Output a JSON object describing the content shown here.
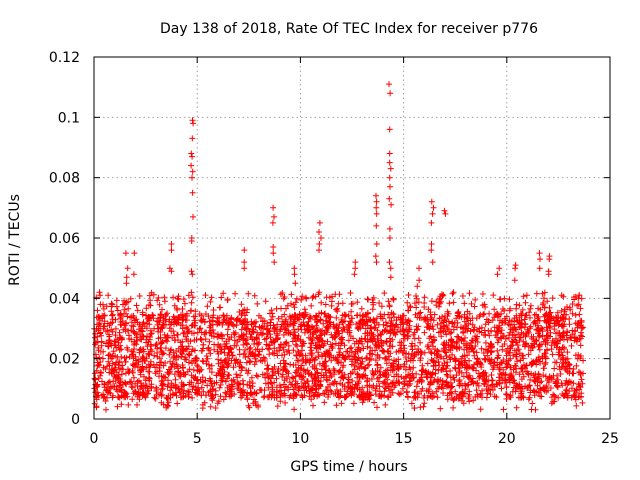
{
  "chart_data": {
    "type": "scatter",
    "title": "Day 138 of 2018, Rate Of TEC Index for receiver p776",
    "xlabel": "GPS time / hours",
    "ylabel": "ROTI / TECUs",
    "xlim": [
      0,
      25
    ],
    "ylim": [
      0,
      0.12
    ],
    "xticks": [
      0,
      5,
      10,
      15,
      20,
      25
    ],
    "xtick_labels": [
      "0",
      "5",
      "10",
      "15",
      "20",
      "25"
    ],
    "yticks": [
      0,
      0.02,
      0.04,
      0.06,
      0.08,
      0.1,
      0.12
    ],
    "ytick_labels": [
      "0",
      "0.02",
      "0.04",
      "0.06",
      "0.08",
      "0.1",
      "0.12"
    ],
    "grid": true,
    "marker": "+",
    "color": "#ff0000",
    "data_range_hours": [
      0,
      23.7
    ],
    "band": {
      "low": 0.007,
      "high": 0.035
    },
    "spikes": [
      {
        "x": 4.75,
        "ys": [
          0.099,
          0.098,
          0.093,
          0.088,
          0.087,
          0.084,
          0.082,
          0.08,
          0.075,
          0.067,
          0.06,
          0.059,
          0.049,
          0.048
        ]
      },
      {
        "x": 14.35,
        "ys": [
          0.111,
          0.108,
          0.096,
          0.088,
          0.085,
          0.083,
          0.08,
          0.077,
          0.073,
          0.071,
          0.063,
          0.06,
          0.052,
          0.05,
          0.047
        ]
      },
      {
        "x": 13.7,
        "ys": [
          0.074,
          0.072,
          0.07,
          0.068,
          0.064,
          0.058,
          0.054,
          0.052
        ]
      },
      {
        "x": 8.7,
        "ys": [
          0.07,
          0.067,
          0.065,
          0.057,
          0.055,
          0.052
        ]
      },
      {
        "x": 10.95,
        "ys": [
          0.065,
          0.062,
          0.06,
          0.058,
          0.056
        ]
      },
      {
        "x": 16.4,
        "ys": [
          0.072,
          0.07,
          0.068,
          0.065,
          0.058,
          0.056,
          0.052
        ]
      },
      {
        "x": 17,
        "ys": [
          0.069,
          0.068
        ]
      },
      {
        "x": 3.7,
        "ys": [
          0.058,
          0.056,
          0.05,
          0.049
        ]
      },
      {
        "x": 1.6,
        "ys": [
          0.055,
          0.05,
          0.047,
          0.045
        ]
      },
      {
        "x": 1.9,
        "ys": [
          0.055,
          0.048
        ]
      },
      {
        "x": 7.25,
        "ys": [
          0.056,
          0.052,
          0.05
        ]
      },
      {
        "x": 9.75,
        "ys": [
          0.05,
          0.048,
          0.045
        ]
      },
      {
        "x": 12.6,
        "ys": [
          0.052,
          0.05,
          0.048
        ]
      },
      {
        "x": 15.7,
        "ys": [
          0.05,
          0.046,
          0.044
        ]
      },
      {
        "x": 19.6,
        "ys": [
          0.05,
          0.048
        ]
      },
      {
        "x": 20.4,
        "ys": [
          0.051,
          0.05,
          0.046
        ]
      },
      {
        "x": 21.6,
        "ys": [
          0.055,
          0.053,
          0.05
        ]
      },
      {
        "x": 22.05,
        "ys": [
          0.054,
          0.053,
          0.049,
          0.048
        ]
      },
      {
        "x": 0.3,
        "ys": [
          0.042,
          0.041,
          0.038
        ]
      },
      {
        "x": 23.5,
        "ys": [
          0.041,
          0.04,
          0.038
        ]
      }
    ]
  }
}
